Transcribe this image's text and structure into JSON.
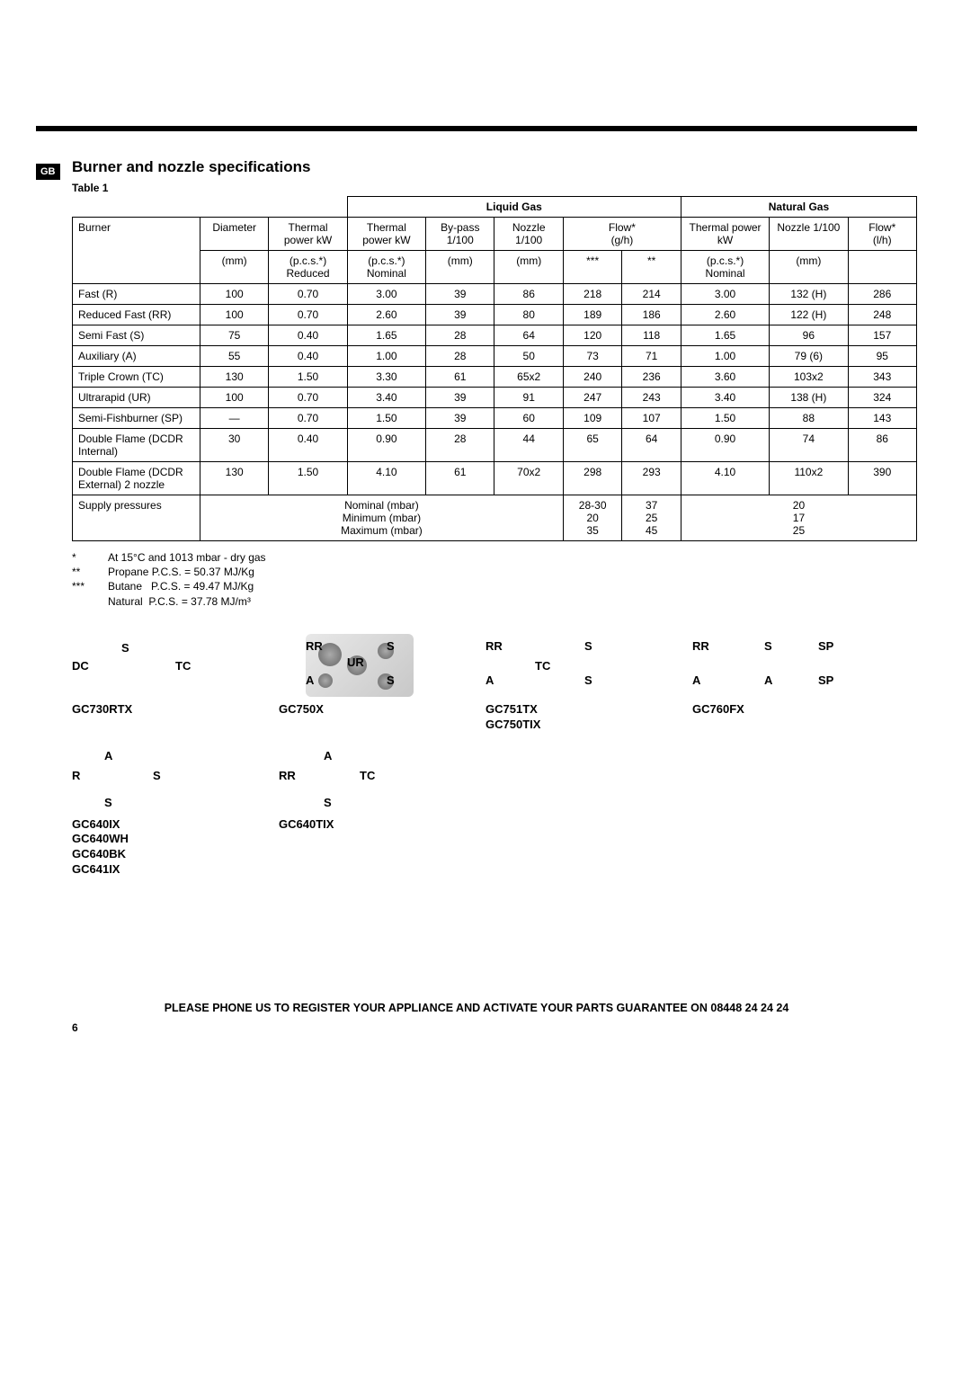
{
  "badge": "GB",
  "heading": "Burner and nozzle specifications",
  "table_label": "Table 1",
  "group_headers": {
    "liquid": "Liquid Gas",
    "natural": "Natural Gas"
  },
  "col_headers": {
    "burner": "Burner",
    "diameter_top": "Diameter",
    "diameter_unit": "(mm)",
    "tp_reduced_top": "Thermal power kW",
    "tp_reduced_bot": "(p.c.s.*) Reduced",
    "tp_nominal_top": "Thermal power kW",
    "tp_nominal_bot": "(p.c.s.*) Nominal",
    "bypass_top": "By-pass 1/100",
    "bypass_unit": "(mm)",
    "nozzle_lg_top": "Nozzle 1/100",
    "nozzle_lg_unit": "(mm)",
    "flow_lg_top": "Flow*",
    "flow_lg_unit": "(g/h)",
    "flow_lg_sub_a": "***",
    "flow_lg_sub_b": "**",
    "tp_ng_top": "Thermal power kW",
    "tp_ng_bot": "(p.c.s.*) Nominal",
    "nozzle_ng_top": "Nozzle 1/100",
    "nozzle_ng_unit": "(mm)",
    "flow_ng_top": "Flow*",
    "flow_ng_unit": "(l/h)"
  },
  "rows": [
    {
      "name": "Fast (R)",
      "dia": "100",
      "red": "0.70",
      "nom": "3.00",
      "bp": "39",
      "nzlg": "86",
      "fa": "218",
      "fb": "214",
      "nomng": "3.00",
      "nzng": "132 (H)",
      "fng": "286"
    },
    {
      "name": "Reduced Fast (RR)",
      "dia": "100",
      "red": "0.70",
      "nom": "2.60",
      "bp": "39",
      "nzlg": "80",
      "fa": "189",
      "fb": "186",
      "nomng": "2.60",
      "nzng": "122 (H)",
      "fng": "248"
    },
    {
      "name": "Semi Fast (S)",
      "dia": "75",
      "red": "0.40",
      "nom": "1.65",
      "bp": "28",
      "nzlg": "64",
      "fa": "120",
      "fb": "118",
      "nomng": "1.65",
      "nzng": "96",
      "fng": "157"
    },
    {
      "name": "Auxiliary (A)",
      "dia": "55",
      "red": "0.40",
      "nom": "1.00",
      "bp": "28",
      "nzlg": "50",
      "fa": "73",
      "fb": "71",
      "nomng": "1.00",
      "nzng": "79 (6)",
      "fng": "95"
    },
    {
      "name": "Triple Crown (TC)",
      "dia": "130",
      "red": "1.50",
      "nom": "3.30",
      "bp": "61",
      "nzlg": "65x2",
      "fa": "240",
      "fb": "236",
      "nomng": "3.60",
      "nzng": "103x2",
      "fng": "343"
    },
    {
      "name": "Ultrarapid (UR)",
      "dia": "100",
      "red": "0.70",
      "nom": "3.40",
      "bp": "39",
      "nzlg": "91",
      "fa": "247",
      "fb": "243",
      "nomng": "3.40",
      "nzng": "138 (H)",
      "fng": "324"
    },
    {
      "name": "Semi-Fishburner (SP)",
      "dia": "—",
      "red": "0.70",
      "nom": "1.50",
      "bp": "39",
      "nzlg": "60",
      "fa": "109",
      "fb": "107",
      "nomng": "1.50",
      "nzng": "88",
      "fng": "143"
    },
    {
      "name": "Double Flame (DCDR Internal)",
      "dia": "30",
      "red": "0.40",
      "nom": "0.90",
      "bp": "28",
      "nzlg": "44",
      "fa": "65",
      "fb": "64",
      "nomng": "0.90",
      "nzng": "74",
      "fng": "86"
    },
    {
      "name": "Double Flame (DCDR External) 2 nozzle",
      "dia": "130",
      "red": "1.50",
      "nom": "4.10",
      "bp": "61",
      "nzlg": "70x2",
      "fa": "298",
      "fb": "293",
      "nomng": "4.10",
      "nzng": "110x2",
      "fng": "390"
    }
  ],
  "supply": {
    "label": "Supply pressures",
    "l1": "Nominal (mbar)",
    "l2": "Minimum (mbar)",
    "l3": "Maximum (mbar)",
    "lg_a1": "28-30",
    "lg_a2": "20",
    "lg_a3": "35",
    "lg_b1": "37",
    "lg_b2": "25",
    "lg_b3": "45",
    "ng1": "20",
    "ng2": "17",
    "ng3": "25"
  },
  "notes": {
    "s1": "*",
    "t1": "At 15°C and 1013 mbar - dry gas",
    "s2": "**",
    "t2": "Propane P.C.S. = 50.37 MJ/Kg",
    "s3": "***",
    "t3": "Butane   P.C.S. = 49.47 MJ/Kg",
    "t4": "Natural  P.C.S. = 37.78 MJ/m³"
  },
  "layouts": {
    "r1": [
      {
        "model": "GC730RTX",
        "labels": [
          [
            "DC",
            0,
            28
          ],
          [
            "S",
            55,
            8
          ],
          [
            "TC",
            115,
            28
          ]
        ]
      },
      {
        "model": "GC750X",
        "labels": [
          [
            "RR",
            30,
            6
          ],
          [
            "S",
            120,
            6
          ],
          [
            "UR",
            76,
            24
          ],
          [
            "A",
            30,
            44
          ],
          [
            "S",
            120,
            44
          ]
        ],
        "image": true
      },
      {
        "model": "GC751TX\nGC750TIX",
        "labels": [
          [
            "RR",
            0,
            6
          ],
          [
            "S",
            110,
            6
          ],
          [
            "TC",
            55,
            28
          ],
          [
            "A",
            0,
            44
          ],
          [
            "S",
            110,
            44
          ]
        ]
      },
      {
        "model": "GC760FX",
        "labels": [
          [
            "RR",
            0,
            6
          ],
          [
            "S",
            80,
            6
          ],
          [
            "SP",
            140,
            6
          ],
          [
            "A",
            0,
            44
          ],
          [
            "A",
            80,
            44
          ],
          [
            "SP",
            140,
            44
          ]
        ]
      }
    ],
    "r2": [
      {
        "model": "GC640IX\nGC640WH\nGC640BK\nGC641IX",
        "labels": [
          [
            "A",
            36,
            0
          ],
          [
            "R",
            0,
            22
          ],
          [
            "S",
            90,
            22
          ],
          [
            "S",
            36,
            52
          ]
        ]
      },
      {
        "model": "GC640TIX",
        "labels": [
          [
            "A",
            50,
            0
          ],
          [
            "RR",
            0,
            22
          ],
          [
            "TC",
            90,
            22
          ],
          [
            "S",
            50,
            52
          ]
        ]
      }
    ]
  },
  "footer": "PLEASE PHONE US TO REGISTER YOUR APPLIANCE AND ACTIVATE YOUR PARTS GUARANTEE ON 08448 24 24 24",
  "page": "6"
}
